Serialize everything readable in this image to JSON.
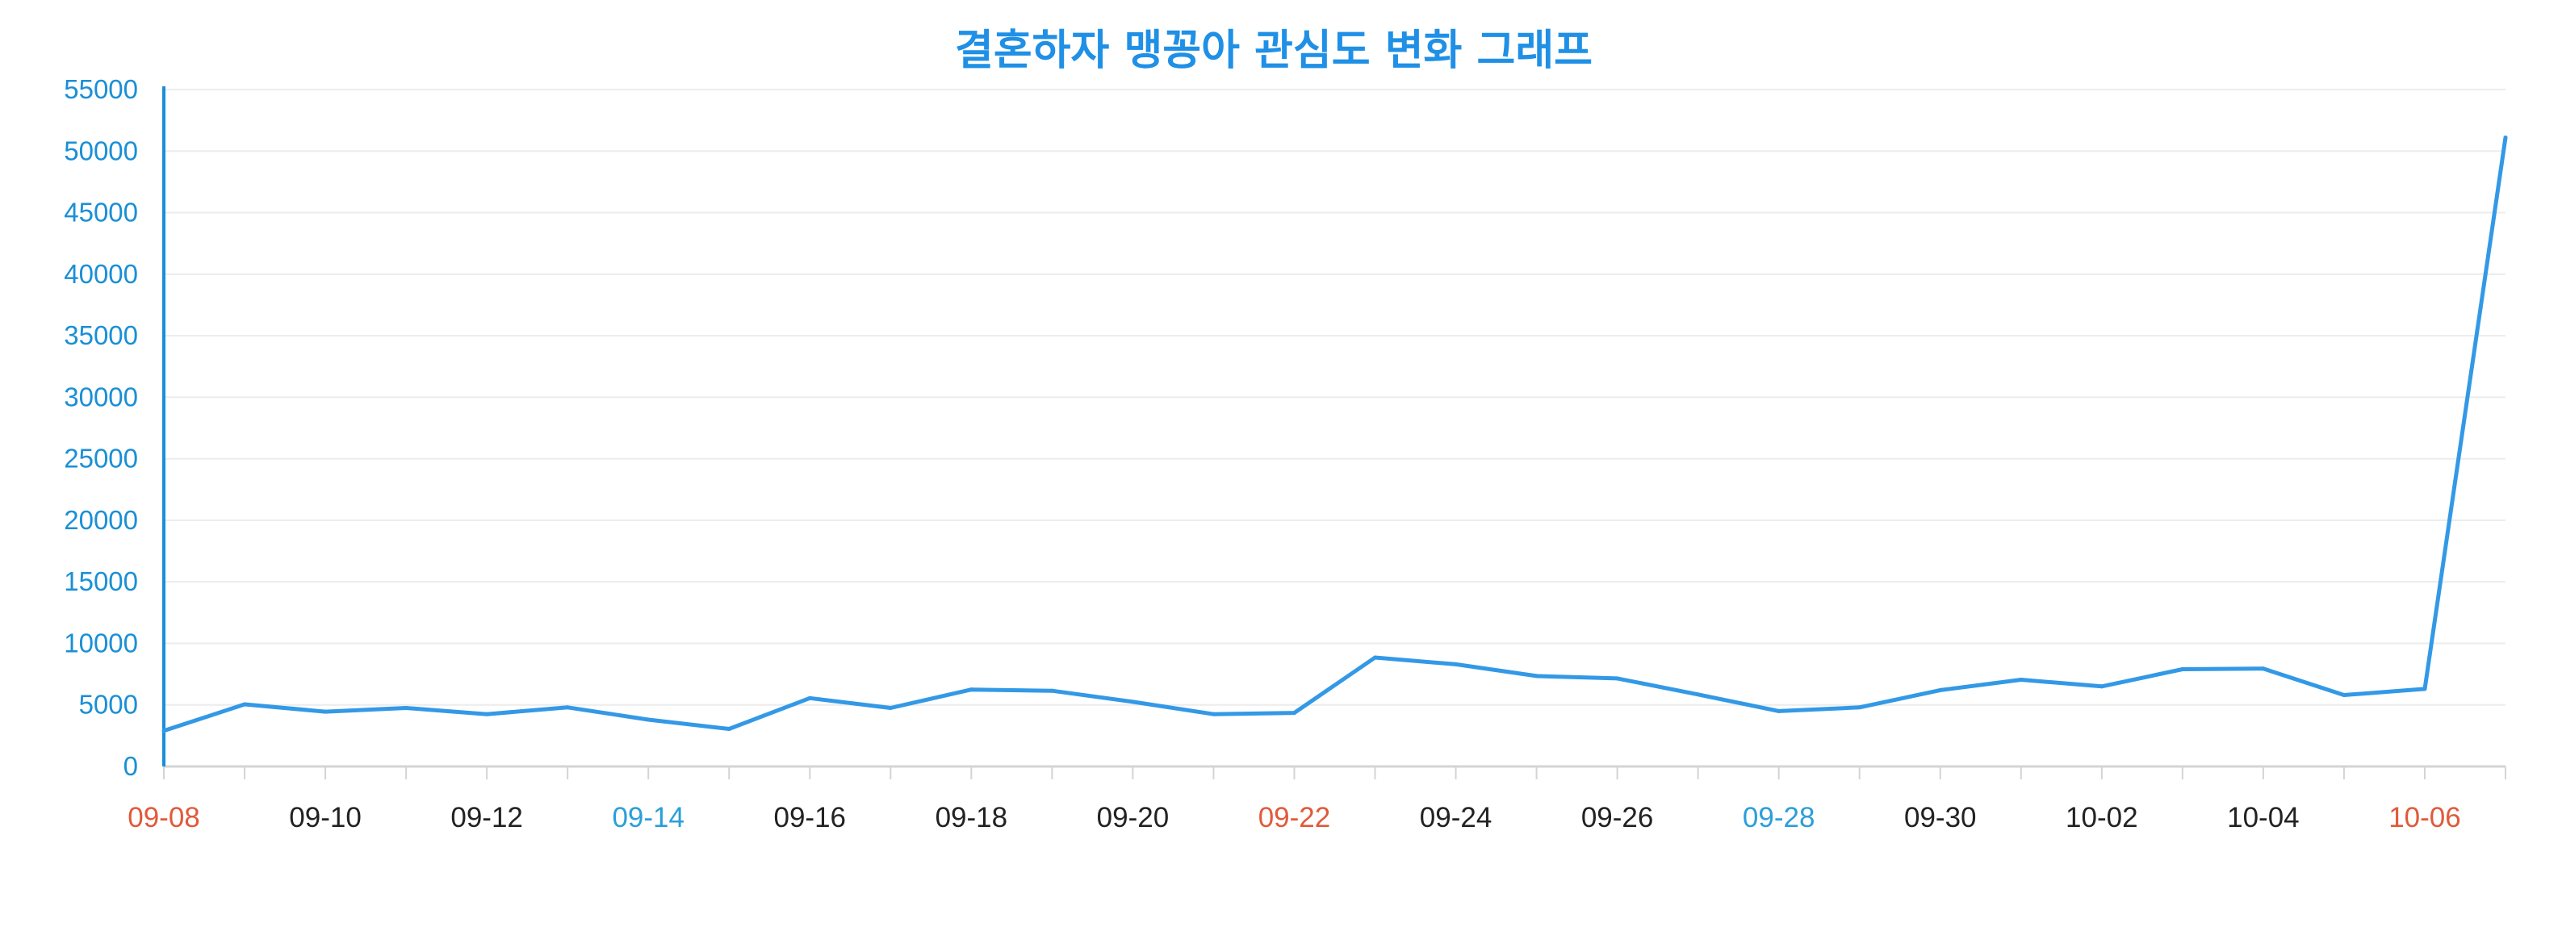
{
  "chart_data": {
    "type": "line",
    "title": "결혼하자 맹꽁아 관심도 변화 그래프",
    "xlabel": "",
    "ylabel": "",
    "ylim": [
      0,
      55000
    ],
    "grid": true,
    "legend": "none",
    "y_ticks": [
      "0",
      "5000",
      "10000",
      "15000",
      "20000",
      "25000",
      "30000",
      "35000",
      "40000",
      "45000",
      "50000",
      "55000"
    ],
    "x_tick_labels": [
      {
        "label": "09-08",
        "color": "#e05a3a"
      },
      {
        "label": "09-10",
        "color": "#222222"
      },
      {
        "label": "09-12",
        "color": "#222222"
      },
      {
        "label": "09-14",
        "color": "#2a9fd8"
      },
      {
        "label": "09-16",
        "color": "#222222"
      },
      {
        "label": "09-18",
        "color": "#222222"
      },
      {
        "label": "09-20",
        "color": "#222222"
      },
      {
        "label": "09-22",
        "color": "#e05a3a"
      },
      {
        "label": "09-24",
        "color": "#222222"
      },
      {
        "label": "09-26",
        "color": "#222222"
      },
      {
        "label": "09-28",
        "color": "#2a9fd8"
      },
      {
        "label": "09-30",
        "color": "#222222"
      },
      {
        "label": "10-02",
        "color": "#222222"
      },
      {
        "label": "10-04",
        "color": "#222222"
      },
      {
        "label": "10-06",
        "color": "#e05a3a"
      }
    ],
    "x": [
      "09-08",
      "09-09",
      "09-10",
      "09-11",
      "09-12",
      "09-13",
      "09-14",
      "09-15",
      "09-16",
      "09-17",
      "09-18",
      "09-19",
      "09-20",
      "09-21",
      "09-22",
      "09-23",
      "09-24",
      "09-25",
      "09-26",
      "09-27",
      "09-28",
      "09-29",
      "09-30",
      "10-01",
      "10-02",
      "10-03",
      "10-04",
      "10-05",
      "10-06",
      "10-07"
    ],
    "series": [
      {
        "values": [
          2900,
          5050,
          4450,
          4750,
          4250,
          4800,
          3800,
          3050,
          5550,
          4750,
          6250,
          6150,
          5250,
          4250,
          4350,
          8850,
          8300,
          7350,
          7150,
          5850,
          4500,
          4800,
          6200,
          7050,
          6500,
          7900,
          7950,
          5800,
          6300,
          51100
        ]
      }
    ]
  },
  "colors": {
    "title": "#1f90e6",
    "line": "#3399e6",
    "y_axis": "#1a8fd6",
    "y_tick_text": "#1a8fd6",
    "x_axis": "#d4d4d4",
    "grid": "#ececec"
  }
}
